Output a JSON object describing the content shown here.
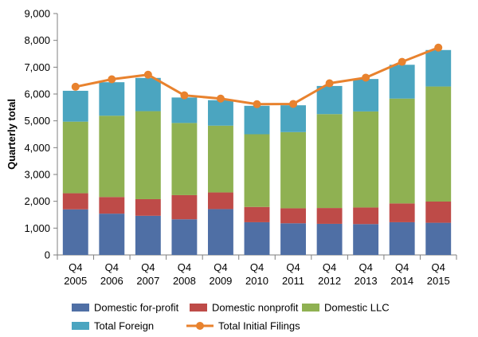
{
  "chart_data": {
    "type": "bar",
    "stacked": true,
    "categories": [
      [
        "Q4",
        "2005"
      ],
      [
        "Q4",
        "2006"
      ],
      [
        "Q4",
        "2007"
      ],
      [
        "Q4",
        "2008"
      ],
      [
        "Q4",
        "2009"
      ],
      [
        "Q4",
        "2010"
      ],
      [
        "Q4",
        "2011"
      ],
      [
        "Q4",
        "2012"
      ],
      [
        "Q4",
        "2013"
      ],
      [
        "Q4",
        "2014"
      ],
      [
        "Q4",
        "2015"
      ]
    ],
    "ylabel": "Quarterly total",
    "ylim": [
      0,
      9000
    ],
    "yticks": [
      0,
      1000,
      2000,
      3000,
      4000,
      5000,
      6000,
      7000,
      8000,
      9000
    ],
    "ytick_labels": [
      "0",
      "1,000",
      "2,000",
      "3,000",
      "4,000",
      "5,000",
      "6,000",
      "7,000",
      "8,000",
      "9,000"
    ],
    "grid": false,
    "legend_position": "bottom",
    "series": [
      {
        "name": "Domestic for-profit",
        "kind": "bar",
        "color": "#4F6FA5",
        "values": [
          1700,
          1540,
          1460,
          1330,
          1710,
          1220,
          1180,
          1160,
          1150,
          1220,
          1200
        ]
      },
      {
        "name": "Domestic nonprofit",
        "kind": "bar",
        "color": "#BE4B48",
        "values": [
          600,
          620,
          620,
          900,
          620,
          570,
          560,
          590,
          620,
          700,
          790
        ]
      },
      {
        "name": "Domestic LLC",
        "kind": "bar",
        "color": "#8FB152",
        "values": [
          2670,
          3030,
          3280,
          2690,
          2490,
          2710,
          2840,
          3500,
          3580,
          3910,
          4290
        ]
      },
      {
        "name": "Total Foreign",
        "kind": "bar",
        "color": "#4BA5C0",
        "values": [
          1150,
          1250,
          1240,
          950,
          950,
          1060,
          1000,
          1050,
          1210,
          1260,
          1360
        ]
      },
      {
        "name": "Total Initial Filings",
        "kind": "line",
        "color": "#E8822E",
        "values": [
          6270,
          6550,
          6720,
          5950,
          5830,
          5620,
          5630,
          6400,
          6610,
          7200,
          7730
        ]
      }
    ]
  }
}
